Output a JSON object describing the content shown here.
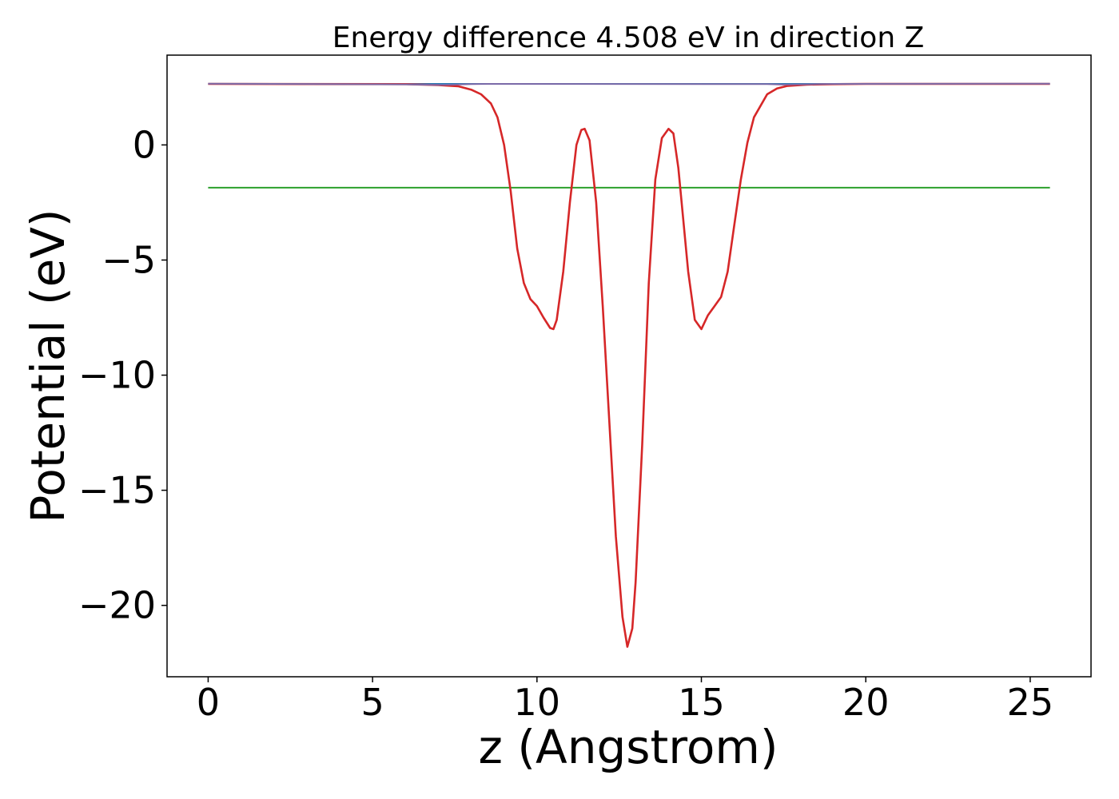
{
  "chart_data": {
    "type": "line",
    "title": "Energy difference 4.508 eV in direction Z",
    "xlabel": "z (Angstrom)",
    "ylabel": "Potential (eV)",
    "xlim": [
      -1.25,
      26.85
    ],
    "ylim": [
      -23.1,
      3.9
    ],
    "xticks": [
      0,
      5,
      10,
      15,
      20,
      25
    ],
    "yticks": [
      0,
      -5,
      -10,
      -15,
      -20
    ],
    "xtick_labels": [
      "0",
      "5",
      "10",
      "15",
      "20",
      "25"
    ],
    "ytick_labels": [
      "0",
      "−5",
      "−10",
      "−15",
      "−20"
    ],
    "grid": false,
    "legend": "none",
    "series": [
      {
        "color": "#1f77b4",
        "x": [
          0,
          25.6
        ],
        "y": [
          2.65,
          2.65
        ]
      },
      {
        "color": "#2ca02c",
        "x": [
          0,
          25.6
        ],
        "y": [
          -1.858,
          -1.858
        ]
      },
      {
        "color": "#d62728",
        "x": [
          0,
          6.0,
          7.0,
          7.6,
          8.0,
          8.3,
          8.6,
          8.8,
          9.0,
          9.2,
          9.4,
          9.6,
          9.8,
          10.0,
          10.2,
          10.4,
          10.5,
          10.6,
          10.8,
          11.0,
          11.2,
          11.35,
          11.45,
          11.6,
          11.8,
          12.0,
          12.2,
          12.4,
          12.6,
          12.75,
          12.9,
          13.0,
          13.2,
          13.4,
          13.6,
          13.8,
          14.0,
          14.15,
          14.3,
          14.4,
          14.6,
          14.8,
          15.0,
          15.2,
          15.4,
          15.6,
          15.8,
          16.0,
          16.2,
          16.4,
          16.6,
          17.0,
          17.3,
          17.6,
          18.2,
          19.0,
          20.0,
          25.6
        ],
        "y": [
          2.65,
          2.64,
          2.6,
          2.55,
          2.4,
          2.2,
          1.8,
          1.2,
          0.0,
          -2.0,
          -4.5,
          -6.0,
          -6.7,
          -7.0,
          -7.5,
          -7.95,
          -8.0,
          -7.6,
          -5.5,
          -2.5,
          0.0,
          0.65,
          0.7,
          0.2,
          -2.5,
          -7.0,
          -12.0,
          -17.0,
          -20.5,
          -21.8,
          -21.0,
          -19.0,
          -13.0,
          -6.0,
          -1.5,
          0.3,
          0.7,
          0.5,
          -1.0,
          -2.5,
          -5.5,
          -7.6,
          -8.0,
          -7.4,
          -7.0,
          -6.6,
          -5.5,
          -3.5,
          -1.5,
          0.1,
          1.2,
          2.2,
          2.45,
          2.56,
          2.62,
          2.64,
          2.65,
          2.65
        ]
      },
      {
        "color": "#7b6aa8",
        "x": [
          0,
          6.0,
          7.0,
          7.5,
          8.0,
          8.5,
          17.0,
          17.5,
          18.0,
          19.0,
          25.6
        ],
        "y": [
          2.66,
          2.63,
          2.61,
          2.62,
          2.64,
          2.65,
          2.64,
          2.62,
          2.63,
          2.65,
          2.66
        ]
      }
    ]
  }
}
